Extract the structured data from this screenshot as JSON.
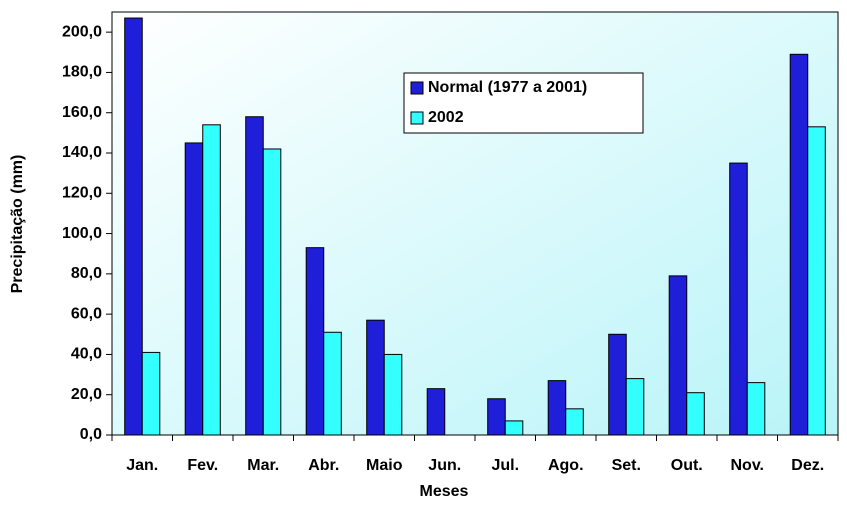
{
  "chart_data": {
    "type": "bar",
    "x_label": "Meses",
    "y_label": "Precipitação (mm)",
    "categories": [
      "Jan.",
      "Fev.",
      "Mar.",
      "Abr.",
      "Maio",
      "Jun.",
      "Jul.",
      "Ago.",
      "Set.",
      "Out.",
      "Nov.",
      "Dez."
    ],
    "series": [
      {
        "name": "Normal (1977 a 2001)",
        "color": "#1f1fd9",
        "values": [
          207,
          145,
          158,
          93,
          57,
          23,
          18,
          27,
          50,
          79,
          135,
          189
        ]
      },
      {
        "name": "2002",
        "color": "#33ffff",
        "values": [
          41,
          154,
          142,
          51,
          40,
          0,
          7,
          13,
          28,
          21,
          26,
          153
        ]
      }
    ],
    "ylim": [
      0,
      210
    ],
    "yticks": [
      {
        "value": 0,
        "label": "0,0"
      },
      {
        "value": 20,
        "label": "20,0"
      },
      {
        "value": 40,
        "label": "40,0"
      },
      {
        "value": 60,
        "label": "60,0"
      },
      {
        "value": 80,
        "label": "80,0"
      },
      {
        "value": 100,
        "label": "100,0"
      },
      {
        "value": 120,
        "label": "120,0"
      },
      {
        "value": 140,
        "label": "140,0"
      },
      {
        "value": 160,
        "label": "160,0"
      },
      {
        "value": 180,
        "label": "180,0"
      },
      {
        "value": 200,
        "label": "200,0"
      }
    ]
  }
}
